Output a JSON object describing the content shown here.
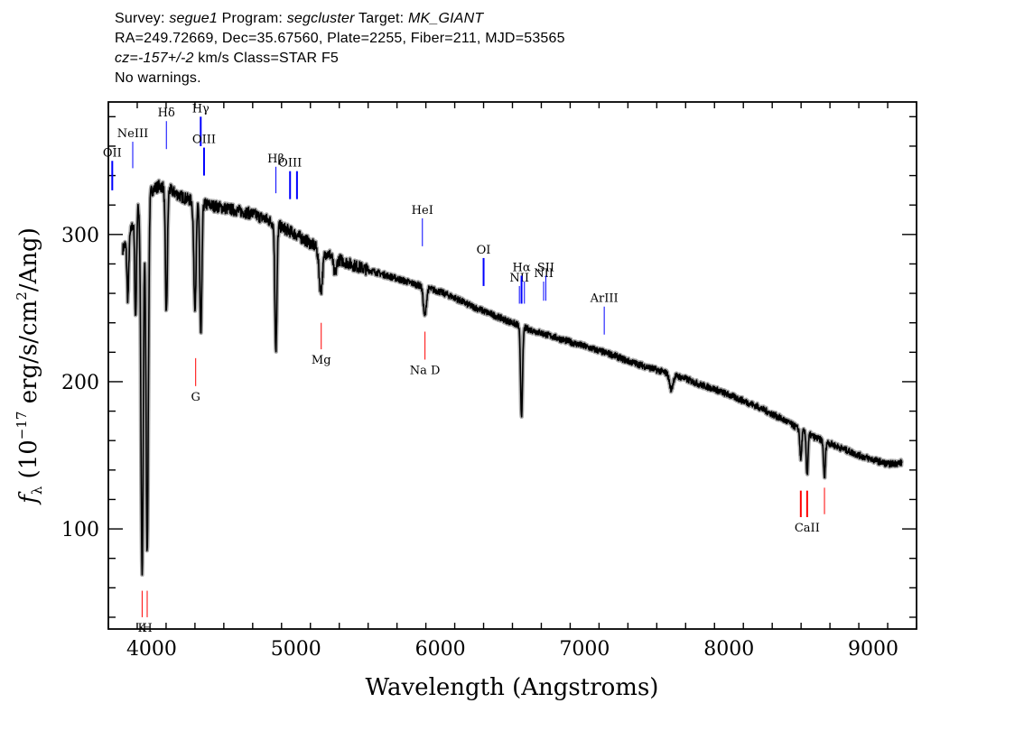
{
  "header": {
    "survey_label": "Survey:",
    "survey": "segue1",
    "program_label": "Program:",
    "program": "segcluster",
    "target_label": "Target:",
    "target": "MK_GIANT",
    "line2": "RA=249.72669, Dec=35.67560, Plate=2255, Fiber=211, MJD=53565",
    "cz_label": "cz=",
    "cz_value": "-157+/-2",
    "cz_rest": " km/s Class=STAR F5",
    "line4": "No warnings."
  },
  "chart_data": {
    "type": "line",
    "xlabel": "Wavelength (Angstroms)",
    "ylabel": "f_λ (10^-17 erg/s/cm^2/Ang)",
    "ylabel_parts": {
      "f": "f",
      "sub": "λ",
      "pre": " (10",
      "exp1": "−17",
      "mid": " erg/s/cm",
      "exp2": "2",
      "post": "/Ang)"
    },
    "xlim": [
      3700,
      9300
    ],
    "ylim": [
      32,
      390
    ],
    "x_ticks": [
      4000,
      5000,
      6000,
      7000,
      8000,
      9000
    ],
    "y_ticks": [
      100,
      200,
      300
    ],
    "series_color": "#000000",
    "error_color": "#aaaaaa",
    "continuum": [
      [
        3800,
        290
      ],
      [
        3850,
        300
      ],
      [
        3900,
        318
      ],
      [
        3950,
        325
      ],
      [
        4000,
        330
      ],
      [
        4050,
        333
      ],
      [
        4100,
        332
      ],
      [
        4200,
        326
      ],
      [
        4300,
        322
      ],
      [
        4400,
        320
      ],
      [
        4500,
        318
      ],
      [
        4600,
        316
      ],
      [
        4700,
        314
      ],
      [
        4800,
        310
      ],
      [
        4900,
        305
      ],
      [
        5000,
        300
      ],
      [
        5100,
        294
      ],
      [
        5200,
        288
      ],
      [
        5300,
        283
      ],
      [
        5400,
        279
      ],
      [
        5500,
        276
      ],
      [
        5600,
        273
      ],
      [
        5700,
        270
      ],
      [
        5800,
        267
      ],
      [
        5900,
        264
      ],
      [
        6000,
        261
      ],
      [
        6100,
        257
      ],
      [
        6200,
        252
      ],
      [
        6300,
        248
      ],
      [
        6400,
        244
      ],
      [
        6500,
        240
      ],
      [
        6600,
        236
      ],
      [
        6700,
        233
      ],
      [
        6800,
        230
      ],
      [
        6900,
        227
      ],
      [
        7000,
        224
      ],
      [
        7100,
        221
      ],
      [
        7200,
        218
      ],
      [
        7300,
        214
      ],
      [
        7400,
        211
      ],
      [
        7500,
        208
      ],
      [
        7600,
        205
      ],
      [
        7700,
        202
      ],
      [
        7800,
        198
      ],
      [
        7900,
        195
      ],
      [
        8000,
        191
      ],
      [
        8100,
        187
      ],
      [
        8200,
        183
      ],
      [
        8300,
        178
      ],
      [
        8400,
        173
      ],
      [
        8500,
        167
      ],
      [
        8600,
        162
      ],
      [
        8700,
        158
      ],
      [
        8800,
        154
      ],
      [
        8900,
        150
      ],
      [
        9000,
        147
      ],
      [
        9100,
        144
      ],
      [
        9200,
        145
      ]
    ],
    "absorption": [
      {
        "x": 3835,
        "depth": 40,
        "width": 6
      },
      {
        "x": 3889,
        "depth": 70,
        "width": 6
      },
      {
        "x": 3934,
        "depth": 255,
        "width": 8
      },
      {
        "x": 3969,
        "depth": 240,
        "width": 8
      },
      {
        "x": 4102,
        "depth": 85,
        "width": 7
      },
      {
        "x": 4300,
        "depth": 70,
        "width": 8
      },
      {
        "x": 4341,
        "depth": 90,
        "width": 7
      },
      {
        "x": 4861,
        "depth": 85,
        "width": 7
      },
      {
        "x": 5172,
        "depth": 28,
        "width": 12
      },
      {
        "x": 5270,
        "depth": 12,
        "width": 10
      },
      {
        "x": 5893,
        "depth": 20,
        "width": 10
      },
      {
        "x": 6563,
        "depth": 60,
        "width": 7
      },
      {
        "x": 7600,
        "depth": 10,
        "width": 12
      },
      {
        "x": 8498,
        "depth": 20,
        "width": 6
      },
      {
        "x": 8542,
        "depth": 28,
        "width": 6
      },
      {
        "x": 8662,
        "depth": 25,
        "width": 6
      }
    ],
    "emission_lines": [
      {
        "label": "OII",
        "x": 3727,
        "y0": 330,
        "y1": 350,
        "color": "#0000ff",
        "lw": 2
      },
      {
        "label": "NeIII",
        "x": 3869,
        "y0": 345,
        "y1": 363,
        "color": "#0000ff",
        "lw": 1
      },
      {
        "label": "Hδ",
        "x": 4102,
        "y0": 358,
        "y1": 377,
        "color": "#0000ff",
        "lw": 1
      },
      {
        "label": "Hγ",
        "x": 4340,
        "y0": 360,
        "y1": 380,
        "color": "#0000ff",
        "lw": 2
      },
      {
        "label": "OIII",
        "x": 4363,
        "y0": 340,
        "y1": 359,
        "color": "#0000ff",
        "lw": 2
      },
      {
        "label": "Hβ",
        "x": 4861,
        "y0": 328,
        "y1": 346,
        "color": "#0000ff",
        "lw": 1
      },
      {
        "label": "OIII",
        "x": 4959,
        "y0": 324,
        "y1": 343,
        "color": "#0000ff",
        "lw": 2
      },
      {
        "label": "",
        "x": 5007,
        "y0": 324,
        "y1": 343,
        "color": "#0000ff",
        "lw": 2
      },
      {
        "label": "HeI",
        "x": 5876,
        "y0": 292,
        "y1": 311,
        "color": "#0000ff",
        "lw": 1
      },
      {
        "label": "OI",
        "x": 6300,
        "y0": 265,
        "y1": 284,
        "color": "#0000ff",
        "lw": 2
      },
      {
        "label": "NII",
        "x": 6548,
        "y0": 253,
        "y1": 265,
        "color": "#0000ff",
        "lw": 1
      },
      {
        "label": "Hα",
        "x": 6563,
        "y0": 253,
        "y1": 272,
        "color": "#0000ff",
        "lw": 2
      },
      {
        "label": "",
        "x": 6583,
        "y0": 253,
        "y1": 268,
        "color": "#0000ff",
        "lw": 1
      },
      {
        "label": "NII",
        "x": 6716,
        "y0": 255,
        "y1": 268,
        "color": "#0000ff",
        "lw": 1
      },
      {
        "label": "SII",
        "x": 6731,
        "y0": 255,
        "y1": 272,
        "color": "#0000ff",
        "lw": 1
      },
      {
        "label": "ArIII",
        "x": 7136,
        "y0": 232,
        "y1": 251,
        "color": "#0000ff",
        "lw": 1
      }
    ],
    "absorption_lines": [
      {
        "label": "K",
        "x": 3934,
        "y0": 40,
        "y1": 58,
        "color": "#ff0000",
        "lw": 1
      },
      {
        "label": "H",
        "x": 3969,
        "y0": 40,
        "y1": 58,
        "color": "#ff0000",
        "lw": 1
      },
      {
        "label": "G",
        "x": 4305,
        "y0": 197,
        "y1": 216,
        "color": "#ff0000",
        "lw": 1
      },
      {
        "label": "Mg",
        "x": 5175,
        "y0": 222,
        "y1": 240,
        "color": "#ff0000",
        "lw": 1
      },
      {
        "label": "Na D",
        "x": 5894,
        "y0": 215,
        "y1": 234,
        "color": "#ff0000",
        "lw": 1
      },
      {
        "label": "",
        "x": 8498,
        "y0": 108,
        "y1": 126,
        "color": "#ff0000",
        "lw": 2
      },
      {
        "label": "CaII",
        "x": 8542,
        "y0": 108,
        "y1": 126,
        "color": "#ff0000",
        "lw": 2
      },
      {
        "label": "",
        "x": 8662,
        "y0": 110,
        "y1": 128,
        "color": "#ff0000",
        "lw": 1
      }
    ]
  }
}
